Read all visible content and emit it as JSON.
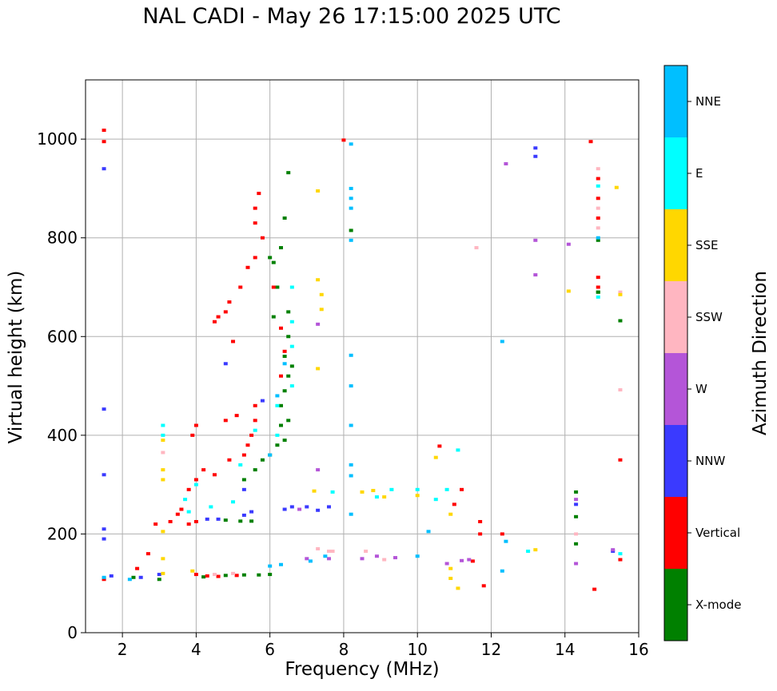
{
  "chart_data": {
    "type": "scatter",
    "title": "NAL CADI - May 26 17:15:00 2025 UTC",
    "xlabel": "Frequency (MHz)",
    "ylabel": "Virtual height (km)",
    "xlim": [
      1,
      16
    ],
    "ylim": [
      0,
      1120
    ],
    "xticks": [
      2,
      4,
      6,
      8,
      10,
      12,
      14,
      16
    ],
    "yticks": [
      0,
      200,
      400,
      600,
      800,
      1000
    ],
    "grid": true,
    "colorbar": {
      "label": "Azimuth Direction",
      "categories": [
        {
          "name": "X-mode",
          "color": "#008000"
        },
        {
          "name": "Vertical",
          "color": "#ff0000"
        },
        {
          "name": "NNW",
          "color": "#3a3aff"
        },
        {
          "name": "W",
          "color": "#b455d8"
        },
        {
          "name": "SSW",
          "color": "#ffb6c1"
        },
        {
          "name": "SSE",
          "color": "#ffd700"
        },
        {
          "name": "E",
          "color": "#00ffff"
        },
        {
          "name": "NNE",
          "color": "#00bfff"
        }
      ]
    },
    "series": [
      {
        "name": "X-mode",
        "points": [
          [
            1.5,
            110
          ],
          [
            2.3,
            112
          ],
          [
            3.0,
            108
          ],
          [
            4.2,
            113
          ],
          [
            4.8,
            116
          ],
          [
            5.3,
            117
          ],
          [
            5.7,
            117
          ],
          [
            6.0,
            118
          ],
          [
            4.8,
            228
          ],
          [
            5.2,
            226
          ],
          [
            5.5,
            226
          ],
          [
            5.3,
            310
          ],
          [
            5.6,
            330
          ],
          [
            5.8,
            350
          ],
          [
            6.0,
            360
          ],
          [
            6.2,
            380
          ],
          [
            6.4,
            390
          ],
          [
            6.3,
            420
          ],
          [
            6.5,
            430
          ],
          [
            6.3,
            460
          ],
          [
            6.4,
            490
          ],
          [
            6.5,
            520
          ],
          [
            6.6,
            540
          ],
          [
            6.4,
            560
          ],
          [
            6.5,
            600
          ],
          [
            6.1,
            640
          ],
          [
            6.5,
            650
          ],
          [
            6.2,
            700
          ],
          [
            6.1,
            750
          ],
          [
            6.3,
            780
          ],
          [
            6.4,
            840
          ],
          [
            6.5,
            932
          ],
          [
            6.0,
            760
          ],
          [
            8.2,
            815
          ],
          [
            14.3,
            235
          ],
          [
            14.3,
            180
          ],
          [
            14.9,
            690
          ],
          [
            14.9,
            795
          ],
          [
            14.9,
            690
          ],
          [
            15.5,
            632
          ],
          [
            14.3,
            285
          ]
        ]
      },
      {
        "name": "Vertical",
        "points": [
          [
            1.5,
            108
          ],
          [
            1.5,
            995
          ],
          [
            1.5,
            1018
          ],
          [
            2.4,
            130
          ],
          [
            2.7,
            160
          ],
          [
            2.9,
            220
          ],
          [
            3.3,
            225
          ],
          [
            3.5,
            240
          ],
          [
            3.8,
            220
          ],
          [
            4.0,
            225
          ],
          [
            4.0,
            118
          ],
          [
            4.3,
            115
          ],
          [
            4.6,
            114
          ],
          [
            5.1,
            116
          ],
          [
            3.6,
            250
          ],
          [
            3.8,
            290
          ],
          [
            4.0,
            310
          ],
          [
            4.2,
            330
          ],
          [
            4.5,
            320
          ],
          [
            4.9,
            350
          ],
          [
            5.3,
            360
          ],
          [
            5.4,
            380
          ],
          [
            5.5,
            400
          ],
          [
            5.6,
            430
          ],
          [
            5.6,
            460
          ],
          [
            4.8,
            430
          ],
          [
            5.1,
            440
          ],
          [
            4.0,
            420
          ],
          [
            3.9,
            400
          ],
          [
            5.0,
            590
          ],
          [
            4.5,
            630
          ],
          [
            4.6,
            640
          ],
          [
            4.8,
            650
          ],
          [
            4.9,
            670
          ],
          [
            5.2,
            700
          ],
          [
            5.4,
            740
          ],
          [
            5.6,
            760
          ],
          [
            5.8,
            800
          ],
          [
            5.6,
            860
          ],
          [
            5.7,
            890
          ],
          [
            5.6,
            830
          ],
          [
            6.3,
            520
          ],
          [
            6.4,
            570
          ],
          [
            6.1,
            700
          ],
          [
            6.3,
            617
          ],
          [
            8.0,
            998
          ],
          [
            10.6,
            378
          ],
          [
            11.0,
            260
          ],
          [
            11.2,
            290
          ],
          [
            11.7,
            225
          ],
          [
            11.7,
            200
          ],
          [
            11.5,
            145
          ],
          [
            11.8,
            95
          ],
          [
            12.3,
            200
          ],
          [
            14.7,
            995
          ],
          [
            14.8,
            88
          ],
          [
            14.9,
            920
          ],
          [
            14.9,
            880
          ],
          [
            14.9,
            840
          ],
          [
            14.9,
            720
          ],
          [
            14.9,
            700
          ],
          [
            15.5,
            350
          ],
          [
            15.5,
            148
          ]
        ]
      },
      {
        "name": "NNW",
        "points": [
          [
            1.5,
            940
          ],
          [
            1.5,
            453
          ],
          [
            1.5,
            320
          ],
          [
            1.5,
            210
          ],
          [
            1.5,
            190
          ],
          [
            1.7,
            115
          ],
          [
            2.5,
            112
          ],
          [
            3.0,
            118
          ],
          [
            4.3,
            230
          ],
          [
            4.6,
            230
          ],
          [
            5.3,
            238
          ],
          [
            5.5,
            245
          ],
          [
            6.4,
            250
          ],
          [
            6.6,
            255
          ],
          [
            7.0,
            255
          ],
          [
            7.3,
            248
          ],
          [
            7.6,
            255
          ],
          [
            4.8,
            545
          ],
          [
            5.3,
            290
          ],
          [
            5.8,
            470
          ],
          [
            13.2,
            982
          ],
          [
            13.2,
            965
          ],
          [
            14.3,
            260
          ],
          [
            15.3,
            165
          ]
        ]
      },
      {
        "name": "W",
        "points": [
          [
            6.8,
            250
          ],
          [
            7.0,
            150
          ],
          [
            7.6,
            150
          ],
          [
            8.5,
            150
          ],
          [
            8.9,
            155
          ],
          [
            9.4,
            152
          ],
          [
            10.8,
            140
          ],
          [
            11.2,
            146
          ],
          [
            11.4,
            148
          ],
          [
            12.4,
            950
          ],
          [
            13.2,
            795
          ],
          [
            13.2,
            725
          ],
          [
            14.1,
            787
          ],
          [
            14.3,
            270
          ],
          [
            14.3,
            140
          ],
          [
            7.3,
            330
          ],
          [
            7.3,
            625
          ],
          [
            15.3,
            168
          ]
        ]
      },
      {
        "name": "SSW",
        "points": [
          [
            3.1,
            365
          ],
          [
            4.5,
            118
          ],
          [
            5.0,
            120
          ],
          [
            7.3,
            170
          ],
          [
            7.6,
            165
          ],
          [
            8.6,
            165
          ],
          [
            9.1,
            148
          ],
          [
            11.6,
            780
          ],
          [
            14.3,
            200
          ],
          [
            14.9,
            940
          ],
          [
            14.9,
            820
          ],
          [
            14.9,
            860
          ],
          [
            15.5,
            690
          ],
          [
            15.5,
            492
          ],
          [
            7.7,
            165
          ]
        ]
      },
      {
        "name": "SSE",
        "points": [
          [
            3.1,
            310
          ],
          [
            3.1,
            330
          ],
          [
            3.1,
            390
          ],
          [
            3.1,
            205
          ],
          [
            3.1,
            150
          ],
          [
            3.1,
            120
          ],
          [
            3.9,
            125
          ],
          [
            7.3,
            895
          ],
          [
            7.3,
            715
          ],
          [
            7.4,
            685
          ],
          [
            7.4,
            655
          ],
          [
            7.3,
            535
          ],
          [
            7.2,
            287
          ],
          [
            8.5,
            285
          ],
          [
            8.8,
            288
          ],
          [
            9.1,
            275
          ],
          [
            10.0,
            278
          ],
          [
            10.5,
            355
          ],
          [
            10.9,
            240
          ],
          [
            10.9,
            130
          ],
          [
            10.9,
            110
          ],
          [
            11.1,
            90
          ],
          [
            13.2,
            168
          ],
          [
            14.1,
            692
          ],
          [
            15.4,
            902
          ],
          [
            15.5,
            685
          ]
        ]
      },
      {
        "name": "E",
        "points": [
          [
            3.1,
            420
          ],
          [
            3.1,
            400
          ],
          [
            3.7,
            270
          ],
          [
            3.8,
            245
          ],
          [
            4.0,
            300
          ],
          [
            4.4,
            255
          ],
          [
            5.0,
            265
          ],
          [
            5.2,
            340
          ],
          [
            5.6,
            410
          ],
          [
            6.2,
            400
          ],
          [
            6.6,
            500
          ],
          [
            6.6,
            580
          ],
          [
            6.6,
            630
          ],
          [
            6.6,
            700
          ],
          [
            6.2,
            460
          ],
          [
            7.7,
            285
          ],
          [
            8.9,
            275
          ],
          [
            9.3,
            290
          ],
          [
            10.0,
            290
          ],
          [
            10.5,
            270
          ],
          [
            10.8,
            290
          ],
          [
            11.1,
            370
          ],
          [
            13.0,
            165
          ],
          [
            14.9,
            905
          ],
          [
            14.9,
            680
          ],
          [
            15.5,
            160
          ]
        ]
      },
      {
        "name": "NNE",
        "points": [
          [
            1.5,
            112
          ],
          [
            2.2,
            108
          ],
          [
            6.0,
            135
          ],
          [
            6.3,
            138
          ],
          [
            7.1,
            145
          ],
          [
            7.5,
            155
          ],
          [
            8.2,
            990
          ],
          [
            8.2,
            900
          ],
          [
            8.2,
            880
          ],
          [
            8.2,
            860
          ],
          [
            8.2,
            795
          ],
          [
            8.2,
            562
          ],
          [
            8.2,
            500
          ],
          [
            8.2,
            420
          ],
          [
            8.2,
            340
          ],
          [
            8.2,
            318
          ],
          [
            8.2,
            240
          ],
          [
            10.0,
            155
          ],
          [
            10.3,
            205
          ],
          [
            12.3,
            590
          ],
          [
            12.3,
            125
          ],
          [
            12.4,
            185
          ],
          [
            14.9,
            800
          ],
          [
            6.0,
            360
          ],
          [
            6.2,
            480
          ],
          [
            6.4,
            545
          ]
        ]
      }
    ]
  }
}
